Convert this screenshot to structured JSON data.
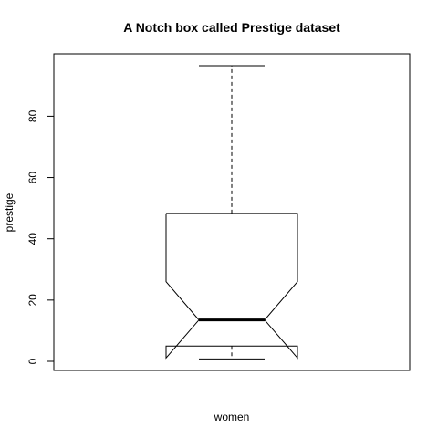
{
  "chart_data": {
    "type": "boxplot",
    "variant": "notched",
    "title": "A Notch box called Prestige dataset",
    "xlabel": "women",
    "ylabel": "prestige",
    "ylim": [
      0,
      96.5
    ],
    "yticks": [
      0,
      20,
      40,
      60,
      80
    ],
    "grid": false,
    "series": [
      {
        "whisker_low": 0.8,
        "q1": 5.0,
        "notch_low": 1.1,
        "median": 13.5,
        "notch_high": 26.0,
        "q3": 48.3,
        "whisker_high": 96.5
      }
    ]
  }
}
